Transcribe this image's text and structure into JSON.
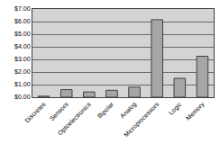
{
  "chart_data": {
    "type": "bar",
    "categories": [
      "Discretes",
      "Sensors",
      "Optoelectronics",
      "Bipolar",
      "Analog",
      "Microprocessors",
      "Logic",
      "Memory"
    ],
    "values": [
      0.08,
      0.6,
      0.42,
      0.55,
      0.8,
      6.15,
      1.5,
      3.25
    ],
    "color": "#a6a6a6",
    "ylim": [
      0,
      7
    ],
    "yticks": [
      {
        "value": 0,
        "label": "$0.00"
      },
      {
        "value": 1,
        "label": "$1.00"
      },
      {
        "value": 2,
        "label": "$2.00"
      },
      {
        "value": 3,
        "label": "$3.00"
      },
      {
        "value": 4,
        "label": "$4.00"
      },
      {
        "value": 5,
        "label": "$5.00"
      },
      {
        "value": 6,
        "label": "$6.00"
      },
      {
        "value": 7,
        "label": "$7.00"
      }
    ],
    "grid": true
  }
}
